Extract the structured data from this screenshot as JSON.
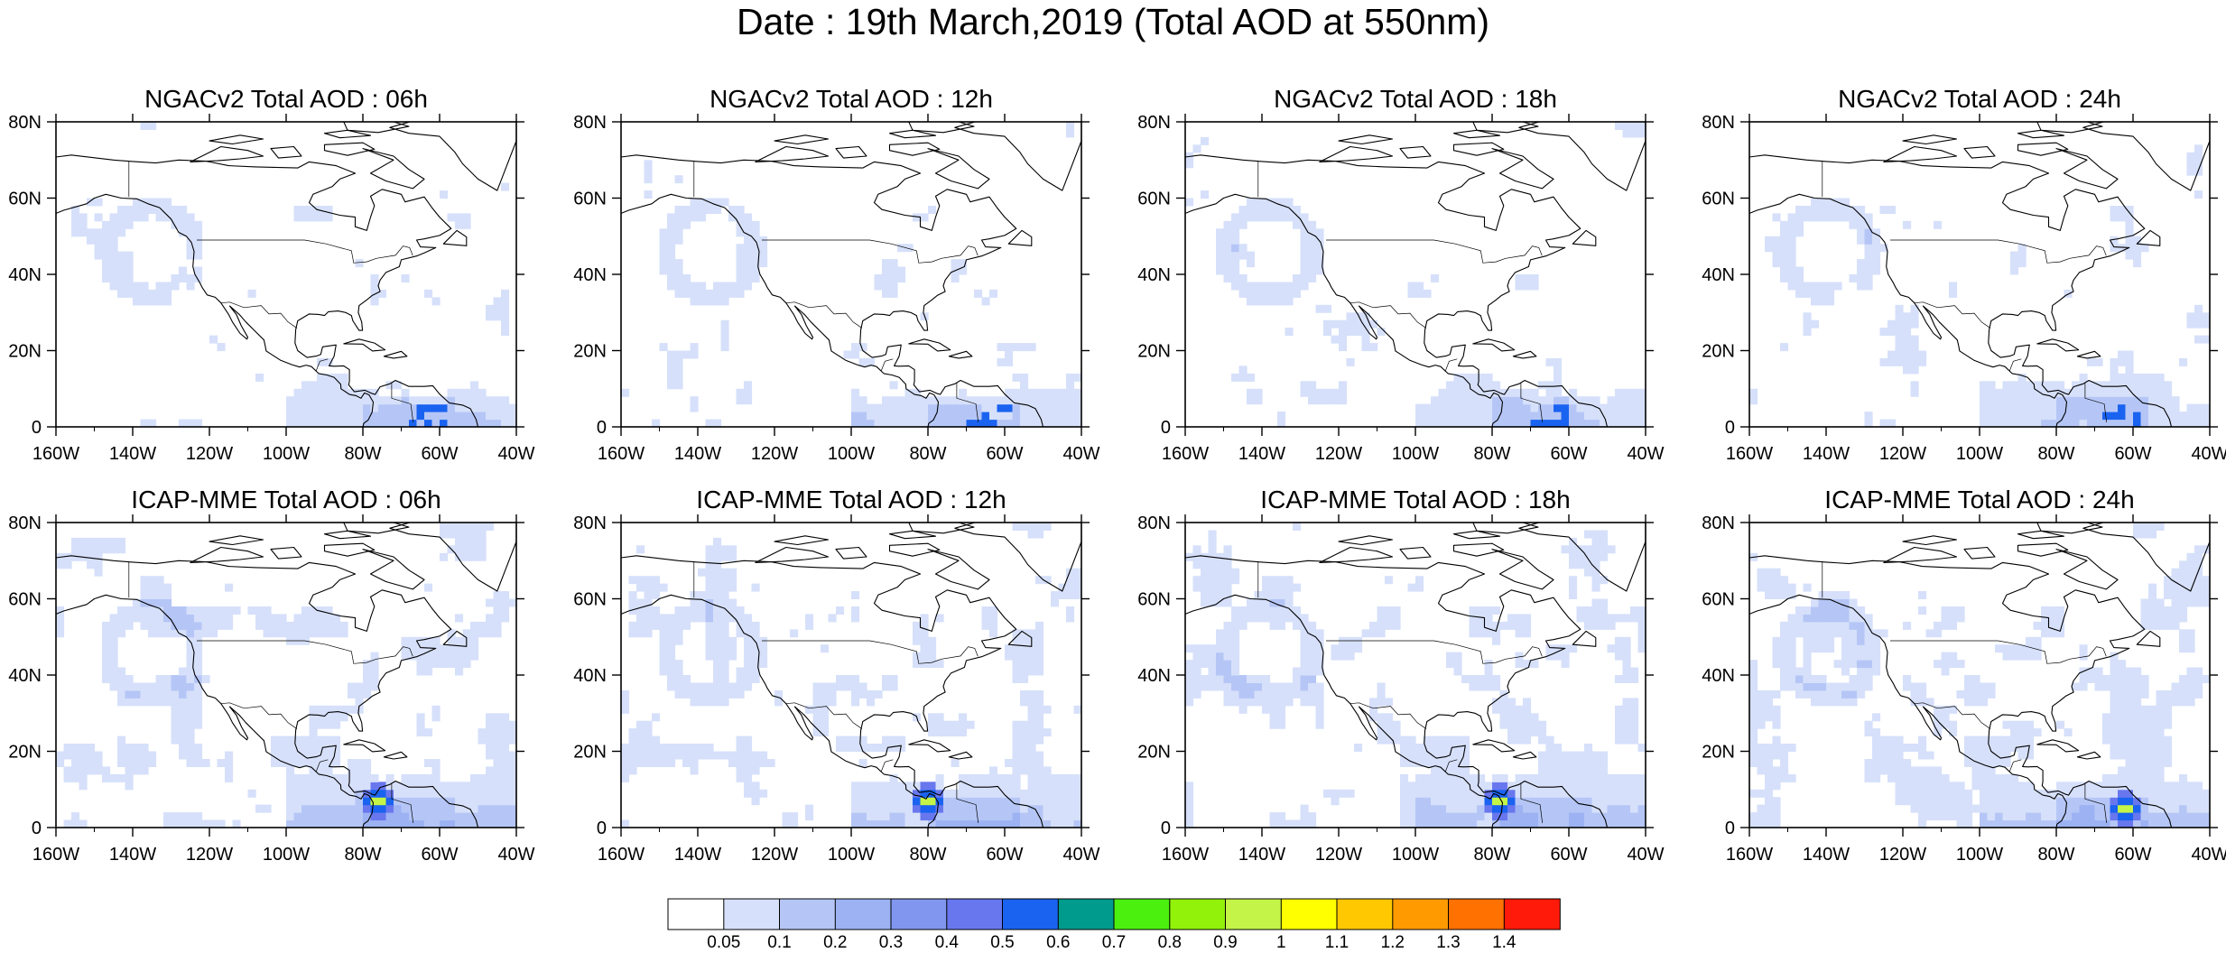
{
  "title": "Date : 19th March,2019 (Total AOD at 550nm)",
  "panels": [
    {
      "title": "NGACv2 Total AOD : 06h",
      "model": "NGACv2",
      "hour": "06h"
    },
    {
      "title": "NGACv2 Total AOD : 12h",
      "model": "NGACv2",
      "hour": "12h"
    },
    {
      "title": "NGACv2 Total AOD : 18h",
      "model": "NGACv2",
      "hour": "18h"
    },
    {
      "title": "NGACv2 Total AOD : 24h",
      "model": "NGACv2",
      "hour": "24h"
    },
    {
      "title": "ICAP-MME Total AOD : 06h",
      "model": "ICAP-MME",
      "hour": "06h"
    },
    {
      "title": "ICAP-MME Total AOD : 12h",
      "model": "ICAP-MME",
      "hour": "12h"
    },
    {
      "title": "ICAP-MME Total AOD : 18h",
      "model": "ICAP-MME",
      "hour": "18h"
    },
    {
      "title": "ICAP-MME Total AOD : 24h",
      "model": "ICAP-MME",
      "hour": "24h"
    }
  ],
  "map": {
    "lon_range": [
      -160,
      -40
    ],
    "lat_range": [
      0,
      80
    ],
    "lon_ticks": [
      "160W",
      "140W",
      "120W",
      "100W",
      "80W",
      "60W",
      "40W"
    ],
    "lat_ticks": [
      "0",
      "20N",
      "40N",
      "60N",
      "80N"
    ]
  },
  "colorbar": {
    "labels": [
      "0.05",
      "0.1",
      "0.2",
      "0.3",
      "0.4",
      "0.5",
      "0.6",
      "0.7",
      "0.8",
      "0.9",
      "1",
      "1.1",
      "1.2",
      "1.3",
      "1.4"
    ],
    "colors": [
      "#ffffff",
      "#d6e0fa",
      "#b5c6f6",
      "#9cb2f3",
      "#8197ef",
      "#6877ee",
      "#1a63f0",
      "#009b8c",
      "#4cf00f",
      "#92f20a",
      "#c4f447",
      "#ffff00",
      "#ffc800",
      "#ff9b00",
      "#ff7100",
      "#ff1a0a"
    ]
  }
}
